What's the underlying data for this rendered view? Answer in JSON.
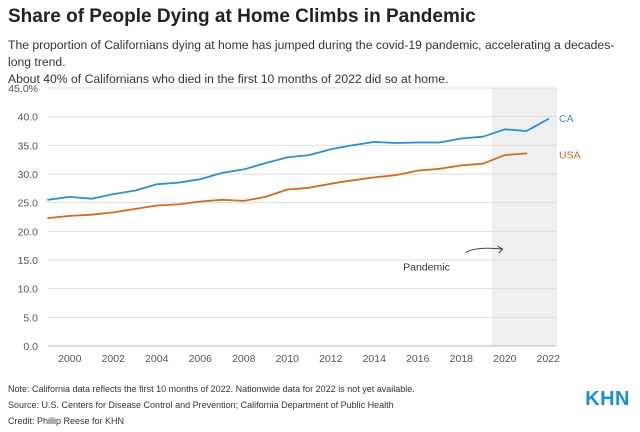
{
  "header": {
    "title": "Share of People Dying at Home Climbs in Pandemic",
    "subtitle_line1": "The proportion of Californians dying at home has jumped during the covid-19 pandemic, accelerating a decades-long trend.",
    "subtitle_line2": "About 40% of Californians who died in the first 10 months of 2022 did so at home."
  },
  "footer": {
    "note": "Note: California data reflects the first 10 months of 2022. Nationwide data for 2022 is not yet available.",
    "source": "Source: U.S. Centers for Disease Control and Prevention; California Department of Public Health",
    "credit": "Credit: Phillip Reese for KHN",
    "logo": "KHN"
  },
  "colors": {
    "ca": "#2b8fd0",
    "usa": "#d26b1f",
    "pandemic_shade": "#efefef",
    "grid": "#dddddd",
    "axis_text": "#555555"
  },
  "chart_data": {
    "type": "line",
    "title": "Share of People Dying at Home Climbs in Pandemic",
    "xlabel": "",
    "ylabel": "",
    "xlim": [
      1999,
      2022.4
    ],
    "ylim": [
      0,
      45
    ],
    "x_ticks": [
      2000,
      2002,
      2004,
      2006,
      2008,
      2010,
      2012,
      2014,
      2016,
      2018,
      2020,
      2022
    ],
    "y_ticks": [
      0,
      5,
      10,
      15,
      20,
      25,
      30,
      35,
      40,
      45
    ],
    "y_tick_labels": [
      "0.0",
      "5.0",
      "10.0",
      "15.0",
      "20.0",
      "25.0",
      "30.0",
      "35.0",
      "40.0",
      "45.0%"
    ],
    "grid": "horizontal",
    "legend": "direct labels at line ends",
    "shaded_region": {
      "x_start": 2019.4,
      "x_end": 2022.4,
      "label": "Pandemic"
    },
    "series": [
      {
        "name": "CA",
        "x": [
          1999,
          2000,
          2001,
          2002,
          2003,
          2004,
          2005,
          2006,
          2007,
          2008,
          2009,
          2010,
          2011,
          2012,
          2013,
          2014,
          2015,
          2016,
          2017,
          2018,
          2019,
          2020,
          2021,
          2022
        ],
        "values": [
          25.5,
          26.0,
          25.7,
          26.5,
          27.1,
          28.2,
          28.5,
          29.1,
          30.2,
          30.8,
          31.9,
          32.9,
          33.3,
          34.3,
          35.0,
          35.6,
          35.4,
          35.5,
          35.5,
          36.2,
          36.5,
          37.8,
          37.5,
          39.6
        ]
      },
      {
        "name": "USA",
        "x": [
          1999,
          2000,
          2001,
          2002,
          2003,
          2004,
          2005,
          2006,
          2007,
          2008,
          2009,
          2010,
          2011,
          2012,
          2013,
          2014,
          2015,
          2016,
          2017,
          2018,
          2019,
          2020,
          2021
        ],
        "values": [
          22.3,
          22.7,
          22.9,
          23.3,
          23.9,
          24.5,
          24.7,
          25.2,
          25.5,
          25.3,
          26.0,
          27.3,
          27.6,
          28.3,
          28.9,
          29.4,
          29.8,
          30.6,
          30.9,
          31.5,
          31.8,
          33.3,
          33.6
        ]
      }
    ]
  }
}
